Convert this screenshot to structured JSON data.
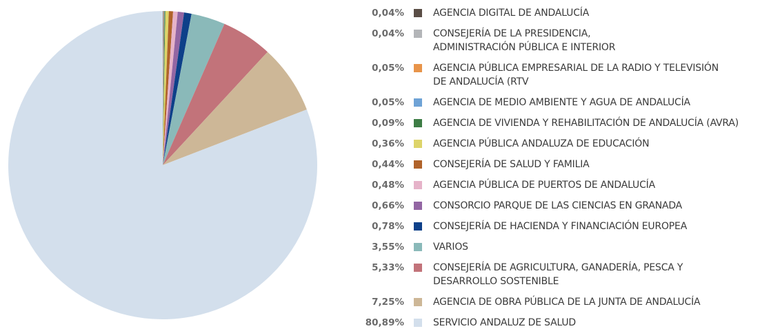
{
  "chart_data": {
    "type": "pie",
    "categories": [
      "AGENCIA DIGITAL DE ANDALUCÍA",
      "CONSEJERÍA DE LA PRESIDENCIA,\nADMINISTRACIÓN PÚBLICA E INTERIOR",
      "AGENCIA PÚBLICA EMPRESARIAL DE LA RADIO Y TELEVISIÓN\nDE ANDALUCÍA (RTV",
      "AGENCIA DE MEDIO AMBIENTE Y AGUA DE ANDALUCÍA",
      "AGENCIA DE VIVIENDA Y REHABILITACIÓN DE ANDALUCÍA (AVRA)",
      "AGENCIA PÚBLICA ANDALUZA DE EDUCACIÓN",
      "CONSEJERÍA DE SALUD Y FAMILIA",
      "AGENCIA PÚBLICA DE PUERTOS DE ANDALUCÍA",
      "CONSORCIO PARQUE DE LAS CIENCIAS EN GRANADA",
      "CONSEJERÍA DE HACIENDA Y FINANCIACIÓN EUROPEA",
      "VARIOS",
      "CONSEJERÍA DE AGRICULTURA, GANADERÍA, PESCA Y\nDESARROLLO SOSTENIBLE",
      "AGENCIA DE OBRA PÚBLICA DE LA JUNTA DE ANDALUCÍA",
      "SERVICIO ANDALUZ DE SALUD"
    ],
    "values": [
      0.04,
      0.04,
      0.05,
      0.05,
      0.09,
      0.36,
      0.44,
      0.48,
      0.66,
      0.78,
      3.55,
      5.33,
      7.25,
      80.89
    ],
    "value_labels": [
      "0,04%",
      "0,04%",
      "0,05%",
      "0,05%",
      "0,09%",
      "0,36%",
      "0,44%",
      "0,48%",
      "0,66%",
      "0,78%",
      "3,55%",
      "5,33%",
      "7,25%",
      "80,89%"
    ],
    "colors": [
      "#5a4e46",
      "#b3b5b8",
      "#e8944a",
      "#6fa3d6",
      "#3d7d45",
      "#ddd46a",
      "#b0632a",
      "#e6b3c9",
      "#9366a3",
      "#0d4089",
      "#8ab9b9",
      "#c2737a",
      "#cdb797",
      "#d3dfec"
    ]
  }
}
